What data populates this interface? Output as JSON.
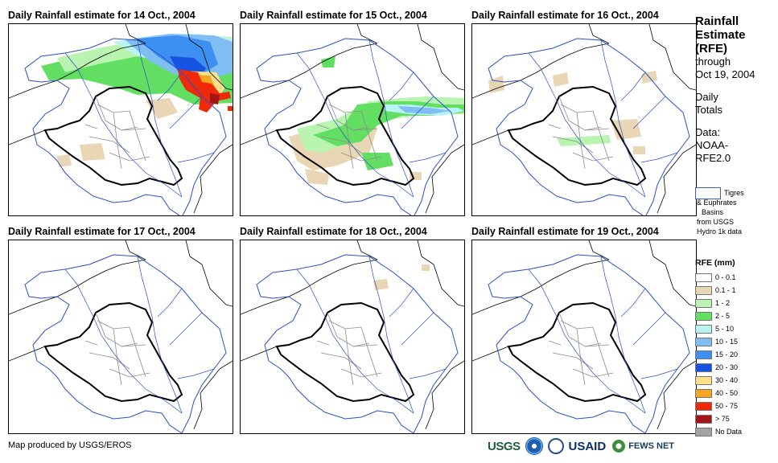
{
  "panels": [
    {
      "title": "Daily Rainfall estimate for 14 Oct., 2004",
      "rain": "p14"
    },
    {
      "title": "Daily Rainfall estimate for 15 Oct., 2004",
      "rain": "p15"
    },
    {
      "title": "Daily Rainfall estimate for 16 Oct., 2004",
      "rain": "p16"
    },
    {
      "title": "Daily Rainfall estimate for 17 Oct., 2004",
      "rain": "none"
    },
    {
      "title": "Daily Rainfall estimate for 18 Oct., 2004",
      "rain": "p18"
    },
    {
      "title": "Daily Rainfall estimate for 19 Oct., 2004",
      "rain": "none"
    }
  ],
  "sidebar": {
    "title_line1": "Rainfall",
    "title_line2": "Estimate",
    "title_line3": "(RFE)",
    "through": "through",
    "date": "Oct 19, 2004",
    "daily": "Daily",
    "totals": "Totals",
    "data_label": "Data:",
    "data_source1": "NOAA-",
    "data_source2": "RFE2.0",
    "basin_line1": "Tigres",
    "basin_line2": "& Euphrates",
    "basin_line3": "Basins",
    "basin_line4": "from USGS",
    "basin_line5": "Hydro 1k data"
  },
  "legend": {
    "title": "RFE (mm)",
    "items": [
      {
        "label": "0 - 0.1",
        "color": "#ffffff"
      },
      {
        "label": "0.1 - 1",
        "color": "#e8d6b4"
      },
      {
        "label": "1 - 2",
        "color": "#b9f5b1"
      },
      {
        "label": "2 - 5",
        "color": "#62df62"
      },
      {
        "label": "5 - 10",
        "color": "#b9f3f3"
      },
      {
        "label": "10 - 15",
        "color": "#7fbdf3"
      },
      {
        "label": "15 - 20",
        "color": "#3d8ff2"
      },
      {
        "label": "20 - 30",
        "color": "#1553e0"
      },
      {
        "label": "30 - 40",
        "color": "#fde08a"
      },
      {
        "label": "40 - 50",
        "color": "#f5a623"
      },
      {
        "label": "50 - 75",
        "color": "#ee2a0a"
      },
      {
        "label": "> 75",
        "color": "#a31616"
      },
      {
        "label": "No Data",
        "color": "#a3a3a3"
      }
    ]
  },
  "footer": {
    "credit": "Map produced by USGS/EROS",
    "usgs": "USGS",
    "usaid": "USAID",
    "fews": "FEWS NET"
  }
}
